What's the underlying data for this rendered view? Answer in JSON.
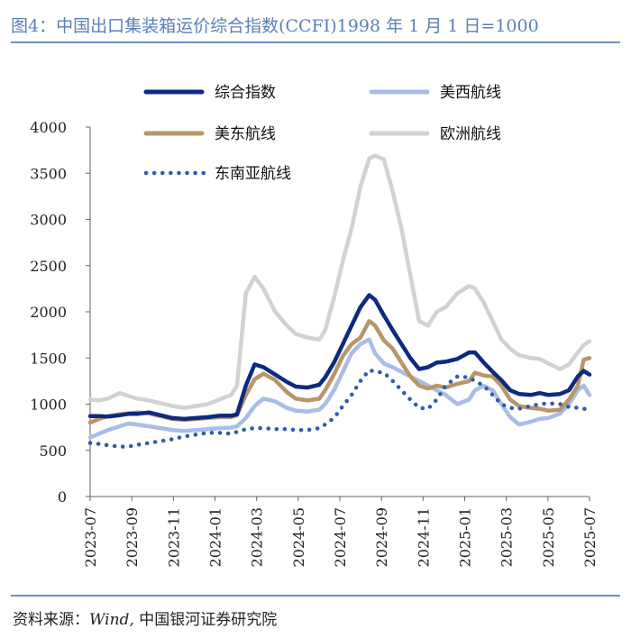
{
  "title": "图4：中国出口集装箱运价综合指数(CCFI)1998 年 1 月 1 日=1000",
  "source": {
    "prefix": "资料来源：",
    "italic": "Wind,",
    "suffix": "中国银河证券研究院"
  },
  "chart_data": {
    "type": "line",
    "xlabel": "",
    "ylabel": "",
    "ylim": [
      0,
      4000
    ],
    "yticks": [
      0,
      500,
      1000,
      1500,
      2000,
      2500,
      3000,
      3500,
      4000
    ],
    "x_tick_labels": [
      "2023-07",
      "2023-09",
      "2023-11",
      "2024-01",
      "2024-03",
      "2024-05",
      "2024-07",
      "2024-09",
      "2024-11",
      "2025-01",
      "2025-03",
      "2025-05",
      "2025-07"
    ],
    "x_start": "2023-07",
    "x_end": "2025-07",
    "grid": false,
    "legend_placement": "top",
    "series": [
      {
        "name": "综合指数",
        "color": "#0d2a80",
        "style": "solid",
        "width": 4.5,
        "points": [
          [
            0,
            870
          ],
          [
            0.3,
            870
          ],
          [
            0.6,
            865
          ],
          [
            1,
            880
          ],
          [
            1.3,
            895
          ],
          [
            1.6,
            895
          ],
          [
            2,
            910
          ],
          [
            2.4,
            880
          ],
          [
            2.8,
            850
          ],
          [
            3.2,
            840
          ],
          [
            3.6,
            850
          ],
          [
            4,
            860
          ],
          [
            4.4,
            875
          ],
          [
            4.8,
            875
          ],
          [
            5,
            890
          ],
          [
            5.3,
            1200
          ],
          [
            5.6,
            1430
          ],
          [
            5.9,
            1400
          ],
          [
            6.3,
            1320
          ],
          [
            6.7,
            1240
          ],
          [
            7,
            1190
          ],
          [
            7.4,
            1180
          ],
          [
            7.8,
            1210
          ],
          [
            8,
            1290
          ],
          [
            8.3,
            1450
          ],
          [
            8.6,
            1650
          ],
          [
            8.9,
            1850
          ],
          [
            9.2,
            2050
          ],
          [
            9.5,
            2180
          ],
          [
            9.7,
            2130
          ],
          [
            10,
            1960
          ],
          [
            10.3,
            1800
          ],
          [
            10.6,
            1650
          ],
          [
            10.9,
            1500
          ],
          [
            11.2,
            1380
          ],
          [
            11.5,
            1400
          ],
          [
            11.8,
            1450
          ],
          [
            12.1,
            1460
          ],
          [
            12.5,
            1490
          ],
          [
            12.9,
            1560
          ],
          [
            13.1,
            1560
          ],
          [
            13.4,
            1450
          ],
          [
            13.7,
            1350
          ],
          [
            14,
            1260
          ],
          [
            14.3,
            1150
          ],
          [
            14.6,
            1110
          ],
          [
            15,
            1100
          ],
          [
            15.3,
            1120
          ],
          [
            15.6,
            1100
          ],
          [
            16,
            1110
          ],
          [
            16.3,
            1150
          ],
          [
            16.6,
            1300
          ],
          [
            16.8,
            1360
          ],
          [
            17,
            1320
          ]
        ]
      },
      {
        "name": "美西航线",
        "color": "#a8bde8",
        "style": "solid",
        "width": 4.5,
        "points": [
          [
            0,
            640
          ],
          [
            0.3,
            680
          ],
          [
            0.6,
            720
          ],
          [
            1,
            760
          ],
          [
            1.3,
            790
          ],
          [
            1.6,
            780
          ],
          [
            2,
            760
          ],
          [
            2.4,
            740
          ],
          [
            2.8,
            720
          ],
          [
            3.2,
            710
          ],
          [
            3.6,
            720
          ],
          [
            4,
            730
          ],
          [
            4.4,
            740
          ],
          [
            4.8,
            745
          ],
          [
            5,
            760
          ],
          [
            5.3,
            850
          ],
          [
            5.6,
            980
          ],
          [
            5.9,
            1060
          ],
          [
            6.3,
            1030
          ],
          [
            6.7,
            960
          ],
          [
            7,
            930
          ],
          [
            7.4,
            920
          ],
          [
            7.8,
            940
          ],
          [
            8,
            1000
          ],
          [
            8.3,
            1150
          ],
          [
            8.6,
            1350
          ],
          [
            8.9,
            1550
          ],
          [
            9.2,
            1650
          ],
          [
            9.5,
            1700
          ],
          [
            9.7,
            1550
          ],
          [
            10,
            1440
          ],
          [
            10.3,
            1400
          ],
          [
            10.6,
            1350
          ],
          [
            10.9,
            1300
          ],
          [
            11.2,
            1250
          ],
          [
            11.5,
            1200
          ],
          [
            11.8,
            1150
          ],
          [
            12.1,
            1100
          ],
          [
            12.5,
            1000
          ],
          [
            12.9,
            1050
          ],
          [
            13.1,
            1150
          ],
          [
            13.4,
            1200
          ],
          [
            13.7,
            1150
          ],
          [
            14,
            1000
          ],
          [
            14.3,
            860
          ],
          [
            14.6,
            780
          ],
          [
            15,
            810
          ],
          [
            15.3,
            840
          ],
          [
            15.6,
            850
          ],
          [
            16,
            900
          ],
          [
            16.3,
            1000
          ],
          [
            16.6,
            1150
          ],
          [
            16.8,
            1200
          ],
          [
            17,
            1100
          ]
        ]
      },
      {
        "name": "美东航线",
        "color": "#b8966a",
        "style": "solid",
        "width": 4.5,
        "points": [
          [
            0,
            800
          ],
          [
            0.3,
            840
          ],
          [
            0.6,
            870
          ],
          [
            1,
            890
          ],
          [
            1.3,
            900
          ],
          [
            1.6,
            910
          ],
          [
            2,
            900
          ],
          [
            2.4,
            870
          ],
          [
            2.8,
            840
          ],
          [
            3.2,
            830
          ],
          [
            3.6,
            840
          ],
          [
            4,
            850
          ],
          [
            4.4,
            860
          ],
          [
            4.8,
            860
          ],
          [
            5,
            880
          ],
          [
            5.3,
            1100
          ],
          [
            5.6,
            1270
          ],
          [
            5.9,
            1330
          ],
          [
            6.3,
            1260
          ],
          [
            6.7,
            1130
          ],
          [
            7,
            1060
          ],
          [
            7.4,
            1040
          ],
          [
            7.8,
            1060
          ],
          [
            8,
            1150
          ],
          [
            8.3,
            1320
          ],
          [
            8.6,
            1520
          ],
          [
            8.9,
            1650
          ],
          [
            9.2,
            1720
          ],
          [
            9.5,
            1900
          ],
          [
            9.7,
            1850
          ],
          [
            10,
            1690
          ],
          [
            10.3,
            1600
          ],
          [
            10.6,
            1450
          ],
          [
            10.9,
            1300
          ],
          [
            11.2,
            1200
          ],
          [
            11.5,
            1170
          ],
          [
            11.8,
            1200
          ],
          [
            12.1,
            1180
          ],
          [
            12.5,
            1220
          ],
          [
            12.9,
            1250
          ],
          [
            13.1,
            1340
          ],
          [
            13.4,
            1310
          ],
          [
            13.7,
            1300
          ],
          [
            14,
            1200
          ],
          [
            14.3,
            1050
          ],
          [
            14.6,
            980
          ],
          [
            15,
            960
          ],
          [
            15.3,
            950
          ],
          [
            15.6,
            930
          ],
          [
            16,
            940
          ],
          [
            16.3,
            1050
          ],
          [
            16.6,
            1200
          ],
          [
            16.8,
            1480
          ],
          [
            17,
            1500
          ]
        ]
      },
      {
        "name": "欧洲航线",
        "color": "#d2d2d2",
        "style": "solid",
        "width": 4.5,
        "points": [
          [
            0,
            1050
          ],
          [
            0.3,
            1040
          ],
          [
            0.6,
            1060
          ],
          [
            1,
            1120
          ],
          [
            1.3,
            1090
          ],
          [
            1.6,
            1060
          ],
          [
            2,
            1040
          ],
          [
            2.4,
            1010
          ],
          [
            2.8,
            980
          ],
          [
            3.2,
            960
          ],
          [
            3.6,
            980
          ],
          [
            4,
            1000
          ],
          [
            4.4,
            1050
          ],
          [
            4.8,
            1100
          ],
          [
            5,
            1200
          ],
          [
            5.3,
            2200
          ],
          [
            5.6,
            2380
          ],
          [
            5.9,
            2250
          ],
          [
            6.3,
            2000
          ],
          [
            6.7,
            1850
          ],
          [
            7,
            1760
          ],
          [
            7.4,
            1720
          ],
          [
            7.8,
            1700
          ],
          [
            8,
            1800
          ],
          [
            8.3,
            2150
          ],
          [
            8.6,
            2550
          ],
          [
            8.9,
            2900
          ],
          [
            9.2,
            3350
          ],
          [
            9.5,
            3660
          ],
          [
            9.7,
            3690
          ],
          [
            10,
            3650
          ],
          [
            10.3,
            3300
          ],
          [
            10.6,
            2900
          ],
          [
            10.9,
            2400
          ],
          [
            11.2,
            1900
          ],
          [
            11.5,
            1850
          ],
          [
            11.8,
            2000
          ],
          [
            12.1,
            2050
          ],
          [
            12.5,
            2200
          ],
          [
            12.9,
            2280
          ],
          [
            13.1,
            2250
          ],
          [
            13.4,
            2100
          ],
          [
            13.7,
            1900
          ],
          [
            14,
            1700
          ],
          [
            14.3,
            1600
          ],
          [
            14.6,
            1530
          ],
          [
            15,
            1500
          ],
          [
            15.3,
            1490
          ],
          [
            15.6,
            1440
          ],
          [
            16,
            1380
          ],
          [
            16.3,
            1430
          ],
          [
            16.6,
            1560
          ],
          [
            16.8,
            1640
          ],
          [
            17,
            1680
          ]
        ]
      },
      {
        "name": "东南亚航线",
        "color": "#2e5cae",
        "style": "dotted",
        "width": 4.5,
        "points": [
          [
            0,
            580
          ],
          [
            0.3,
            570
          ],
          [
            0.6,
            555
          ],
          [
            1,
            540
          ],
          [
            1.3,
            540
          ],
          [
            1.6,
            560
          ],
          [
            2,
            580
          ],
          [
            2.4,
            600
          ],
          [
            2.8,
            620
          ],
          [
            3.2,
            650
          ],
          [
            3.6,
            670
          ],
          [
            4,
            690
          ],
          [
            4.4,
            690
          ],
          [
            4.8,
            680
          ],
          [
            5,
            700
          ],
          [
            5.3,
            730
          ],
          [
            5.6,
            740
          ],
          [
            5.9,
            740
          ],
          [
            6.3,
            730
          ],
          [
            6.7,
            730
          ],
          [
            7,
            720
          ],
          [
            7.4,
            720
          ],
          [
            7.8,
            740
          ],
          [
            8,
            780
          ],
          [
            8.3,
            850
          ],
          [
            8.6,
            980
          ],
          [
            8.9,
            1100
          ],
          [
            9.2,
            1250
          ],
          [
            9.5,
            1370
          ],
          [
            9.7,
            1350
          ],
          [
            10,
            1340
          ],
          [
            10.3,
            1250
          ],
          [
            10.6,
            1150
          ],
          [
            10.9,
            1050
          ],
          [
            11.2,
            960
          ],
          [
            11.5,
            950
          ],
          [
            11.8,
            1050
          ],
          [
            12.1,
            1200
          ],
          [
            12.5,
            1300
          ],
          [
            12.9,
            1290
          ],
          [
            13.1,
            1250
          ],
          [
            13.4,
            1200
          ],
          [
            13.7,
            1100
          ],
          [
            14,
            1000
          ],
          [
            14.3,
            960
          ],
          [
            14.6,
            950
          ],
          [
            15,
            980
          ],
          [
            15.3,
            1000
          ],
          [
            15.6,
            1010
          ],
          [
            16,
            1000
          ],
          [
            16.3,
            970
          ],
          [
            16.6,
            960
          ],
          [
            16.8,
            950
          ],
          [
            17,
            940
          ]
        ]
      }
    ]
  }
}
